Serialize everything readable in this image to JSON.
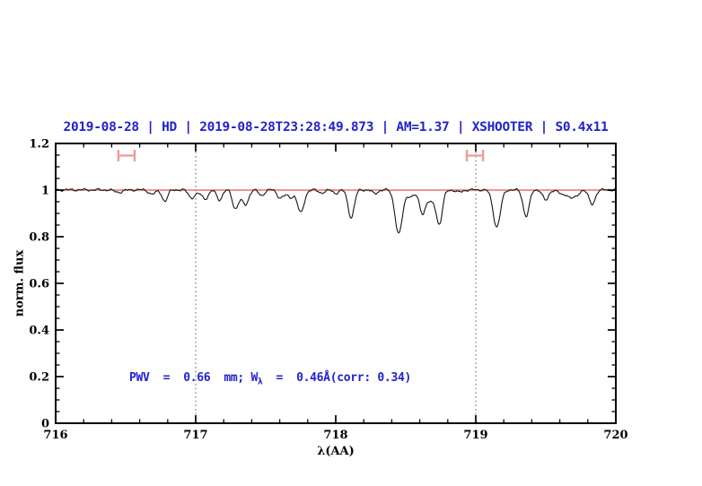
{
  "figure": {
    "title": "2019-08-28 | HD | 2019-08-28T23:28:49.873 | AM=1.37 | XSHOOTER | S0.4x11",
    "annotation": {
      "pre": "PWV  =  0.66  mm; W",
      "sub": "λ",
      "post": "  =  0.46Å(corr: 0.34)"
    }
  },
  "chart_data": {
    "type": "line",
    "title": "2019-08-28 | HD | 2019-08-28T23:28:49.873 | AM=1.37 | XSHOOTER | S0.4x11",
    "xlabel": "λ(AA)",
    "ylabel": "norm. flux",
    "xlim": [
      716,
      720
    ],
    "ylim": [
      0,
      1.2
    ],
    "x_ticks": [
      716,
      717,
      718,
      719,
      720
    ],
    "x_tick_labels": [
      "716",
      "717",
      "718",
      "719",
      "720"
    ],
    "x_minor_step": 0.2,
    "y_ticks": [
      0,
      0.2,
      0.4,
      0.6,
      0.8,
      1,
      1.2
    ],
    "y_tick_labels": [
      "0",
      "0.2",
      "0.4",
      "0.6",
      "0.8",
      "1",
      "1.2"
    ],
    "y_minor_step": 0.05,
    "grid": false,
    "legend": "none",
    "dotted_guides_x": [
      717,
      719
    ],
    "continuum_y": 1.0,
    "baseline": 1.001,
    "ripples": [
      {
        "amp": 0.003,
        "freq": 9.7,
        "phase": 0.8
      },
      {
        "amp": 0.0022,
        "freq": 21.4,
        "phase": 2.3
      },
      {
        "amp": 0.0012,
        "freq": 47.3,
        "phase": 5.1
      }
    ],
    "absorption_lines": [
      [
        716.45,
        0.01,
        0.03
      ],
      [
        716.69,
        0.018,
        0.025
      ],
      [
        716.78,
        0.048,
        0.02
      ],
      [
        716.97,
        0.032,
        0.022
      ],
      [
        717.02,
        0.012,
        0.025
      ],
      [
        717.07,
        0.036,
        0.022
      ],
      [
        717.17,
        0.042,
        0.02
      ],
      [
        717.28,
        0.068,
        0.02
      ],
      [
        717.32,
        0.03,
        0.028
      ],
      [
        717.36,
        0.052,
        0.02
      ],
      [
        717.47,
        0.024,
        0.02
      ],
      [
        717.6,
        0.03,
        0.02
      ],
      [
        717.64,
        0.018,
        0.022
      ],
      [
        717.68,
        0.028,
        0.018
      ],
      [
        717.75,
        0.098,
        0.024
      ],
      [
        717.9,
        0.012,
        0.025
      ],
      [
        718.0,
        0.014,
        0.02
      ],
      [
        718.11,
        0.118,
        0.022
      ],
      [
        718.28,
        0.016,
        0.02
      ],
      [
        718.45,
        0.188,
        0.026
      ],
      [
        718.54,
        0.028,
        0.03
      ],
      [
        718.62,
        0.098,
        0.022
      ],
      [
        718.68,
        0.048,
        0.025
      ],
      [
        718.74,
        0.145,
        0.022
      ],
      [
        718.88,
        0.01,
        0.025
      ],
      [
        719.15,
        0.158,
        0.026
      ],
      [
        719.36,
        0.112,
        0.022
      ],
      [
        719.5,
        0.046,
        0.02
      ],
      [
        719.62,
        0.022,
        0.025
      ],
      [
        719.68,
        0.032,
        0.02
      ],
      [
        719.72,
        0.025,
        0.018
      ],
      [
        719.83,
        0.062,
        0.022
      ]
    ],
    "markers": {
      "y": 1.148,
      "cap_half": 0.025,
      "items": [
        {
          "x": 716.506,
          "half": 0.058
        },
        {
          "x": 718.994,
          "half": 0.058
        }
      ]
    },
    "colors": {
      "text_blue": "#2222cc",
      "continuum": "#e87272",
      "marker": "#f09a9a",
      "spectrum": "#151515",
      "guide": "#555555",
      "axis": "#000000"
    }
  }
}
